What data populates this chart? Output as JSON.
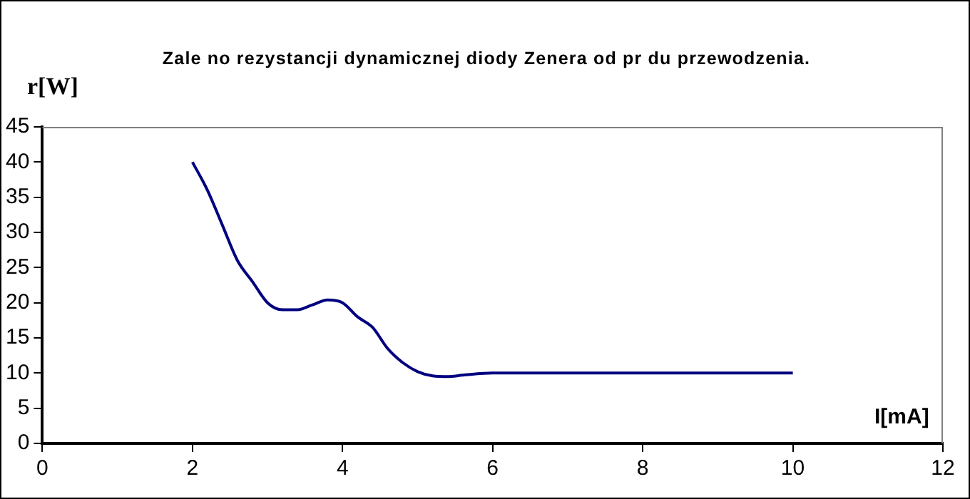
{
  "chart_data": {
    "type": "line",
    "title": "Zale  no     rezystancji dynamicznej diody Zenera od pr  du przewodzenia.",
    "xlabel": "I[mA]",
    "ylabel": "r[W]",
    "x": [
      2,
      2.2,
      2.4,
      2.6,
      2.8,
      3.0,
      3.2,
      3.4,
      3.6,
      3.8,
      4.0,
      4.2,
      4.4,
      4.6,
      4.8,
      5.0,
      5.2,
      5.4,
      5.6,
      6,
      7,
      8,
      9,
      10
    ],
    "series": [
      {
        "color": "#000080",
        "values": [
          40,
          36,
          31,
          26,
          23,
          20,
          19,
          19,
          19.7,
          20.4,
          20,
          18,
          16.5,
          13.5,
          11.5,
          10.2,
          9.6,
          9.5,
          9.7,
          10,
          10,
          10,
          10,
          10
        ]
      }
    ],
    "xlim": [
      0,
      12
    ],
    "xticks": [
      0,
      2,
      4,
      6,
      8,
      10,
      12
    ],
    "ylim": [
      0,
      45
    ],
    "yticks": [
      0,
      5,
      10,
      15,
      20,
      25,
      30,
      35,
      40,
      45
    ],
    "grid": false,
    "legend": false,
    "marker": "none",
    "line_style": "solid"
  }
}
